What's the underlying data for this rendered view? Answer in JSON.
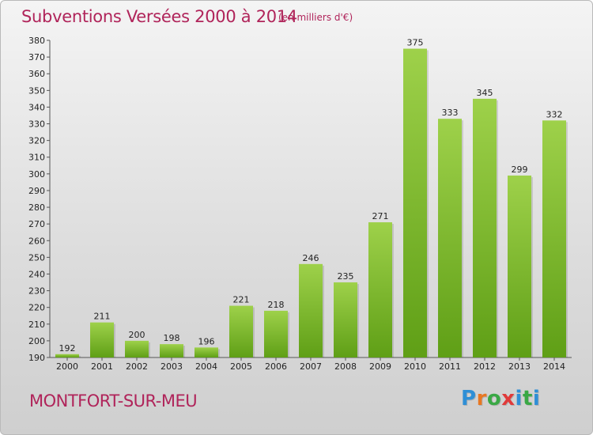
{
  "header": {
    "title": "Subventions Versées 2000 à 2014",
    "subtitle": "(en milliers d'€)"
  },
  "footer": {
    "commune": "MONTFORT-SUR-MEU",
    "logo_letters": [
      "P",
      "r",
      "o",
      "x",
      "i",
      "t",
      "i"
    ],
    "logo_colors": [
      "#2f8fd6",
      "#e87722",
      "#3aa845",
      "#e03a3a",
      "#2f8fd6",
      "#3aa845",
      "#2f8fd6"
    ]
  },
  "colors": {
    "bar_top": "#9ed14a",
    "bar_bottom": "#5f9f16",
    "title": "#b0245a"
  },
  "chart_data": {
    "type": "bar",
    "categories": [
      "2000",
      "2001",
      "2002",
      "2003",
      "2004",
      "2005",
      "2006",
      "2007",
      "2008",
      "2009",
      "2010",
      "2011",
      "2012",
      "2013",
      "2014"
    ],
    "values": [
      192,
      211,
      200,
      198,
      196,
      221,
      218,
      246,
      235,
      271,
      375,
      333,
      345,
      299,
      332
    ],
    "title": "Subventions Versées 2000 à 2014",
    "subtitle": "(en milliers d'€)",
    "ylim": [
      190,
      380
    ],
    "yticks": [
      190,
      200,
      210,
      220,
      230,
      240,
      250,
      260,
      270,
      280,
      290,
      300,
      310,
      320,
      330,
      340,
      350,
      360,
      370,
      380
    ],
    "grid": false
  }
}
